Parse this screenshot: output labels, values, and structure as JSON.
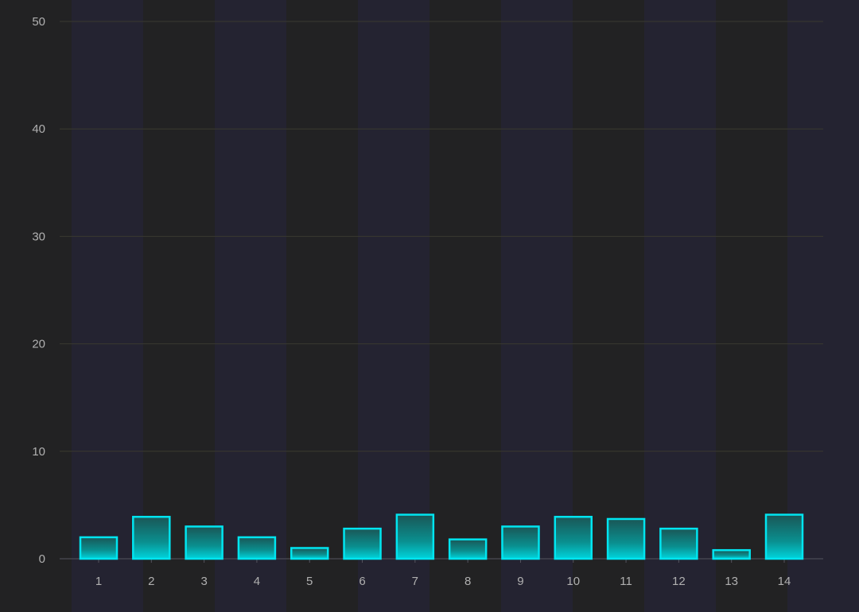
{
  "chart_data": {
    "type": "bar",
    "title": "",
    "xlabel": "",
    "ylabel": "",
    "categories": [
      "1",
      "2",
      "3",
      "4",
      "5",
      "6",
      "7",
      "8",
      "9",
      "10",
      "11",
      "12",
      "13",
      "14"
    ],
    "values": [
      2,
      3.9,
      3,
      2,
      1,
      2.8,
      4.1,
      1.8,
      3,
      3.9,
      3.7,
      2.8,
      0.8,
      4.1
    ],
    "ylim": [
      0,
      50
    ],
    "yticks": [
      0,
      10,
      20,
      30,
      40,
      50
    ],
    "grid": true,
    "colors": {
      "bar_border": "#00e5f0",
      "bar_top": "#1a5a5a",
      "bar_bottom": "#00c8d0",
      "background": "#222224",
      "grid": "#3a3a30",
      "axis_text": "#b0b0b0"
    }
  }
}
